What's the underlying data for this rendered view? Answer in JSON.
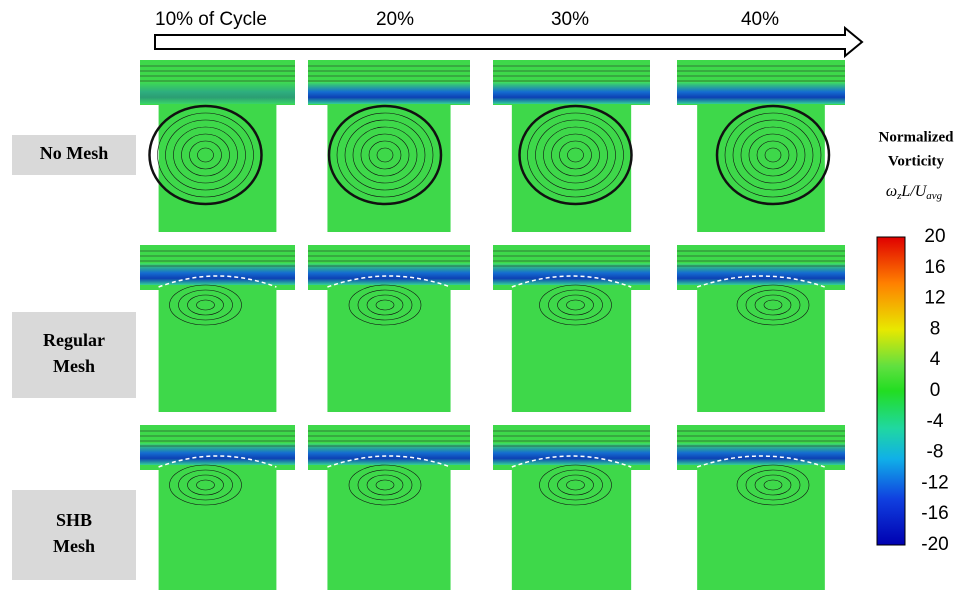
{
  "timeline": {
    "labels": [
      "10% of Cycle",
      "20%",
      "30%",
      "40%"
    ]
  },
  "rows": [
    {
      "label": [
        "No Mesh"
      ]
    },
    {
      "label": [
        "Regular",
        "Mesh"
      ]
    },
    {
      "label": [
        "SHB",
        "Mesh"
      ]
    }
  ],
  "colorbar": {
    "title": [
      "Normalized",
      "Vorticity"
    ],
    "formula": [
      "ω",
      "z",
      "L/U",
      "avg"
    ],
    "lim": [
      -20,
      20
    ],
    "ticks": [
      20,
      16,
      12,
      8,
      4,
      0,
      -4,
      -8,
      -12,
      -16,
      -20
    ]
  }
}
